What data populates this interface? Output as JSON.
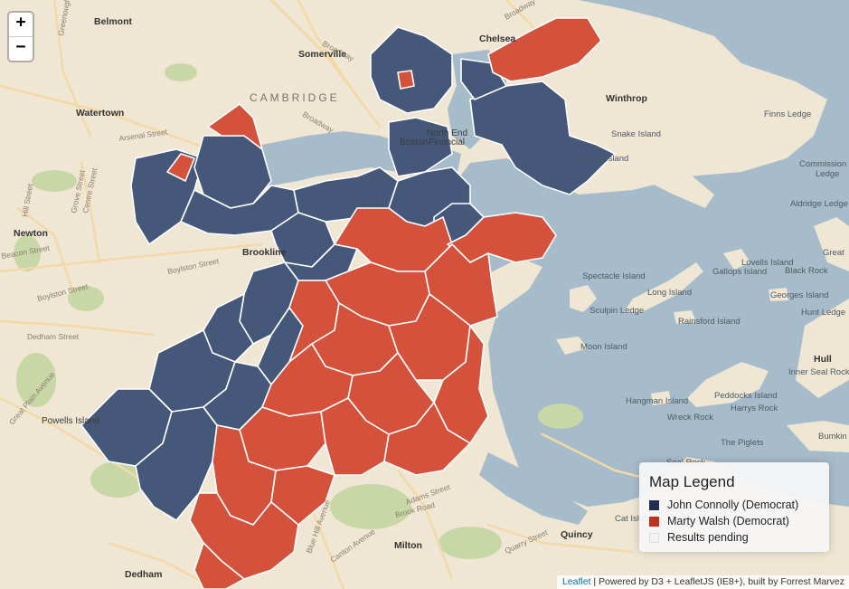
{
  "colors": {
    "land": "#efe6d3",
    "water": "#a7bccb",
    "park": "#c8d7a6",
    "road": "#f6d9a4",
    "connolly": "#46587a",
    "walsh": "#d4513c",
    "pending": "#f4f4f4"
  },
  "zoom": {
    "in_label": "+",
    "out_label": "−"
  },
  "labels": {
    "belmont": "Belmont",
    "somerville": "Somerville",
    "chelsea": "Chelsea",
    "cambridge": "CAMBRIDGE",
    "watertown": "Watertown",
    "winthrop": "Winthrop",
    "finns_ledge": "Finns Ledge",
    "snake_island": "Snake Island",
    "apple_island": "Apple Island",
    "commission_ledge_1": "Commission",
    "commission_ledge_2": "Ledge",
    "aldridge_ledge": "Aldridge Ledge",
    "newton": "Newton",
    "brookline": "Brookline",
    "spectacle_island": "Spectacle Island",
    "lovells_island": "Lovells Island",
    "gallops_island": "Gallops Island",
    "black_rock": "Black Rock",
    "long_island": "Long Island",
    "georges_island": "Georges Island",
    "great": "Great",
    "sculpin_ledge": "Sculpin Ledge",
    "rainsford_island": "Rainsford Island",
    "hunt_ledge": "Hunt Ledge",
    "moon_island": "Moon Island",
    "hull": "Hull",
    "inner_seal_rock": "Inner Seal Rock",
    "dedham_street": "Dedham Street",
    "hangman_island": "Hangman Island",
    "peddocks_island": "Peddocks Island",
    "harrys_rock": "Harrys Rock",
    "wreck_rock": "Wreck Rock",
    "powells_island": "Powells Island",
    "the_piglets": "The Piglets",
    "bumkin": "Bumkin",
    "seal_rock": "Seal Rock",
    "milton": "Milton",
    "quincy": "Quincy",
    "cat_island": "Cat Island",
    "dedham": "Dedham",
    "north_end": "North End",
    "boston": "Boston",
    "financial": "Financial"
  },
  "roads": {
    "arsenal_street": "Arsenal Street",
    "beacon_street": "Beacon Street",
    "boylston_street_1": "Boylston Street",
    "boylston_street_2": "Boylston Street",
    "broadway_1": "Broadway",
    "broadway_2": "Broadway",
    "broadway_3": "Broadway",
    "adams_street": "Adams Street",
    "brook_road": "Brook Road",
    "blue_hill_avenue": "Blue Hill Avenue",
    "canton_avenue": "Canton Avenue",
    "quarry_street": "Quarry Street",
    "greenough": "Greenough",
    "great_plain": "Great Plain Avenue",
    "centre_street": "Centre Street",
    "hill_street": "Hill Street",
    "grove_street": "Grove Street"
  },
  "legend": {
    "title": "Map Legend",
    "items": [
      {
        "label": "John Connolly (Democrat)",
        "color": "#1f2e50"
      },
      {
        "label": "Marty Walsh (Democrat)",
        "color": "#c0321f"
      },
      {
        "label": "Results pending",
        "color": "#f2f2f2"
      }
    ]
  },
  "attribution": {
    "link": "Leaflet",
    "text": " | Powered by D3 + LeafletJS (IE8+), built by Forrest Marvez"
  }
}
